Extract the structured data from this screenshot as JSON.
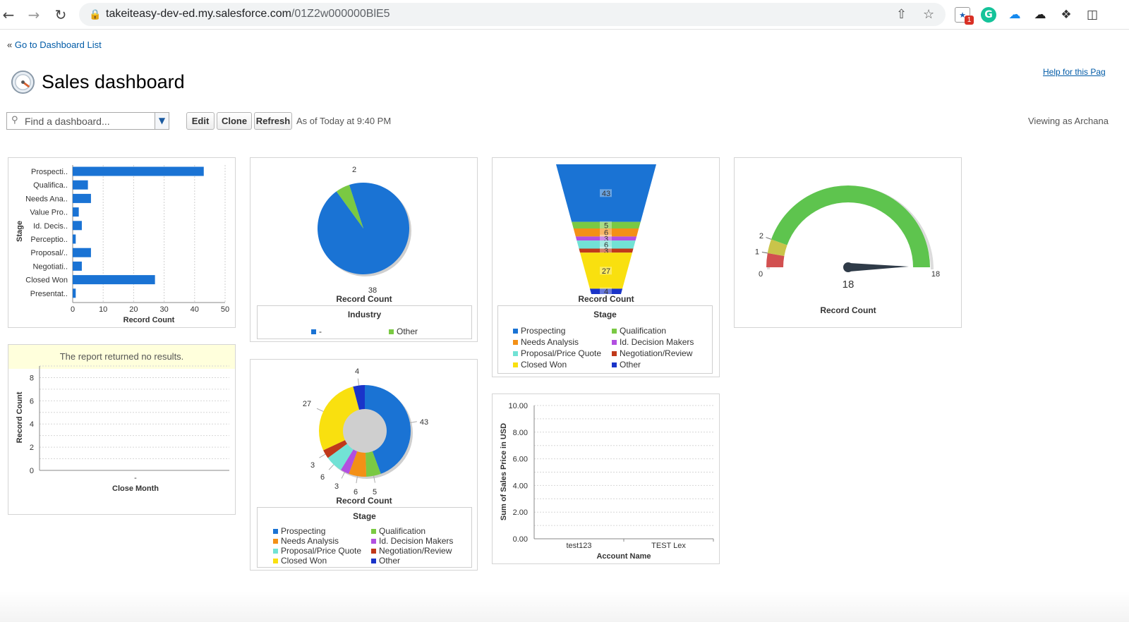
{
  "browser": {
    "url_host": "takeiteasy-dev-ed.my.salesforce.com",
    "url_path": "/01Z2w000000BlE5",
    "extension_badge": "1"
  },
  "page": {
    "back_prefix": "«",
    "back_link": "Go to Dashboard List",
    "title": "Sales dashboard",
    "help_link": "Help for this Pag",
    "search_placeholder": "Find a dashboard...",
    "edit_label": "Edit",
    "clone_label": "Clone",
    "refresh_label": "Refresh",
    "as_of": "As of Today at 9:40 PM",
    "viewing_as": "Viewing as Archana"
  },
  "colors": {
    "blue": "#1a73d4",
    "green": "#7ac943",
    "orange": "#f39016",
    "purple": "#b24fe0",
    "cyan": "#72e2d5",
    "darkred": "#c0391b",
    "yellow": "#f9e00f",
    "navy": "#1a34c9"
  },
  "chart_data": [
    {
      "type": "bar",
      "orientation": "horizontal",
      "categories": [
        "Prospecti..",
        "Qualifica..",
        "Needs Ana..",
        "Value Pro..",
        "Id. Decis..",
        "Perceptio..",
        "Proposal/..",
        "Negotiati..",
        "Closed Won",
        "Presentat.."
      ],
      "values": [
        43,
        5,
        6,
        2,
        3,
        1,
        6,
        3,
        27,
        1
      ],
      "xlabel": "Record Count",
      "ylabel": "Stage",
      "xticks": [
        "0",
        "10",
        "20",
        "30",
        "40",
        "50"
      ],
      "xlim": [
        0,
        50
      ],
      "grid": true
    },
    {
      "type": "pie",
      "labels": [
        "-",
        "Other"
      ],
      "values": [
        38,
        2
      ],
      "value_labels": [
        "38",
        "2"
      ],
      "caption": "Record Count",
      "legend_title": "Industry"
    },
    {
      "type": "funnel",
      "labels": [
        "Prospecting",
        "Qualification",
        "Needs Analysis",
        "Id. Decision Makers",
        "Proposal/Price Quote",
        "Negotiation/Review",
        "Closed Won",
        "Other"
      ],
      "values": [
        43,
        5,
        6,
        3,
        6,
        3,
        27,
        4
      ],
      "value_labels": [
        "43",
        "5",
        "6",
        "3",
        "6",
        "3",
        "27",
        "4"
      ],
      "caption": "Record Count",
      "legend_title": "Stage"
    },
    {
      "type": "gauge",
      "value": 18,
      "min": 0,
      "max": 18,
      "breakpoints": [
        1,
        2
      ],
      "min_label": "0",
      "max_label": "18",
      "break_labels": [
        "1",
        "2"
      ],
      "value_label": "18",
      "caption": "Record Count"
    },
    {
      "type": "line",
      "message": "The report returned no results.",
      "ylabel": "Record Count",
      "xlabel": "Close Month",
      "yticks": [
        "0",
        "2",
        "4",
        "6",
        "8"
      ],
      "xtick": "-",
      "ylim": [
        0,
        9
      ],
      "grid": true
    },
    {
      "type": "donut",
      "labels": [
        "Prospecting",
        "Qualification",
        "Needs Analysis",
        "Id. Decision Makers",
        "Proposal/Price Quote",
        "Negotiation/Review",
        "Closed Won",
        "Other"
      ],
      "values": [
        43,
        5,
        6,
        3,
        6,
        3,
        27,
        4
      ],
      "value_labels": [
        "43",
        "5",
        "6",
        "3",
        "6",
        "3",
        "27",
        "4"
      ],
      "caption": "Record Count",
      "legend_title": "Stage"
    },
    {
      "type": "bar",
      "categories": [
        "test123",
        "TEST Lex"
      ],
      "values": [
        0,
        0
      ],
      "ylabel": "Sum of Sales Price in USD",
      "xlabel": "Account Name",
      "yticks": [
        "0.00",
        "2.00",
        "4.00",
        "6.00",
        "8.00",
        "10.00"
      ],
      "ylim": [
        0,
        10
      ],
      "grid": true
    }
  ]
}
